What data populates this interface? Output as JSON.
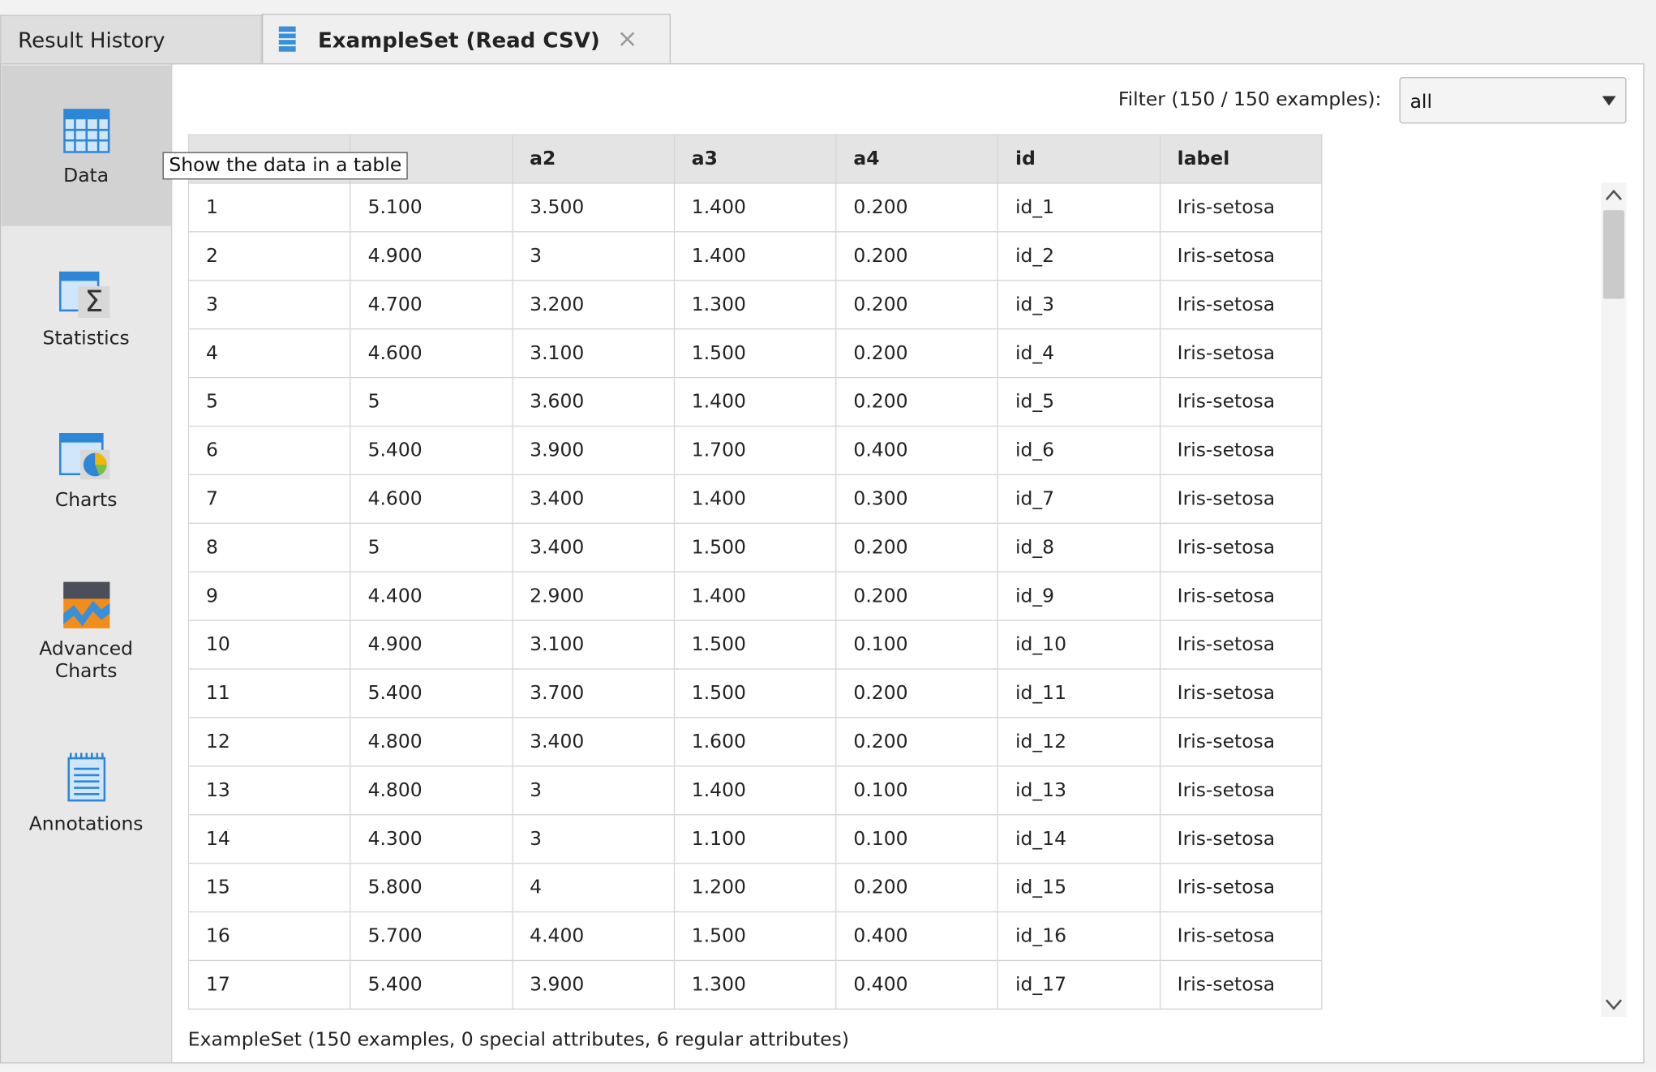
{
  "tabs": [
    "Result History",
    "ExampleSet (Read CSV)"
  ],
  "sidebar": [
    "Data",
    "Statistics",
    "Charts",
    "Advanced Charts",
    "Annotations"
  ],
  "tooltip": "Show the data in a table",
  "filter": {
    "label": "Filter (150 / 150 examples):",
    "value": "all"
  },
  "table": {
    "headers": [
      null,
      null,
      "a2",
      "a3",
      "a4",
      "id",
      "label"
    ],
    "rows": [
      [
        "1",
        "5.100",
        "3.500",
        "1.400",
        "0.200",
        "id_1",
        "Iris-setosa"
      ],
      [
        "2",
        "4.900",
        "3",
        "1.400",
        "0.200",
        "id_2",
        "Iris-setosa"
      ],
      [
        "3",
        "4.700",
        "3.200",
        "1.300",
        "0.200",
        "id_3",
        "Iris-setosa"
      ],
      [
        "4",
        "4.600",
        "3.100",
        "1.500",
        "0.200",
        "id_4",
        "Iris-setosa"
      ],
      [
        "5",
        "5",
        "3.600",
        "1.400",
        "0.200",
        "id_5",
        "Iris-setosa"
      ],
      [
        "6",
        "5.400",
        "3.900",
        "1.700",
        "0.400",
        "id_6",
        "Iris-setosa"
      ],
      [
        "7",
        "4.600",
        "3.400",
        "1.400",
        "0.300",
        "id_7",
        "Iris-setosa"
      ],
      [
        "8",
        "5",
        "3.400",
        "1.500",
        "0.200",
        "id_8",
        "Iris-setosa"
      ],
      [
        "9",
        "4.400",
        "2.900",
        "1.400",
        "0.200",
        "id_9",
        "Iris-setosa"
      ],
      [
        "10",
        "4.900",
        "3.100",
        "1.500",
        "0.100",
        "id_10",
        "Iris-setosa"
      ],
      [
        "11",
        "5.400",
        "3.700",
        "1.500",
        "0.200",
        "id_11",
        "Iris-setosa"
      ],
      [
        "12",
        "4.800",
        "3.400",
        "1.600",
        "0.200",
        "id_12",
        "Iris-setosa"
      ],
      [
        "13",
        "4.800",
        "3",
        "1.400",
        "0.100",
        "id_13",
        "Iris-setosa"
      ],
      [
        "14",
        "4.300",
        "3",
        "1.100",
        "0.100",
        "id_14",
        "Iris-setosa"
      ],
      [
        "15",
        "5.800",
        "4",
        "1.200",
        "0.200",
        "id_15",
        "Iris-setosa"
      ],
      [
        "16",
        "5.700",
        "4.400",
        "1.500",
        "0.400",
        "id_16",
        "Iris-setosa"
      ],
      [
        "17",
        "5.400",
        "3.900",
        "1.300",
        "0.400",
        "id_17",
        "Iris-setosa"
      ]
    ]
  },
  "footer": "ExampleSet (150 examples, 0 special attributes, 6 regular attributes)"
}
